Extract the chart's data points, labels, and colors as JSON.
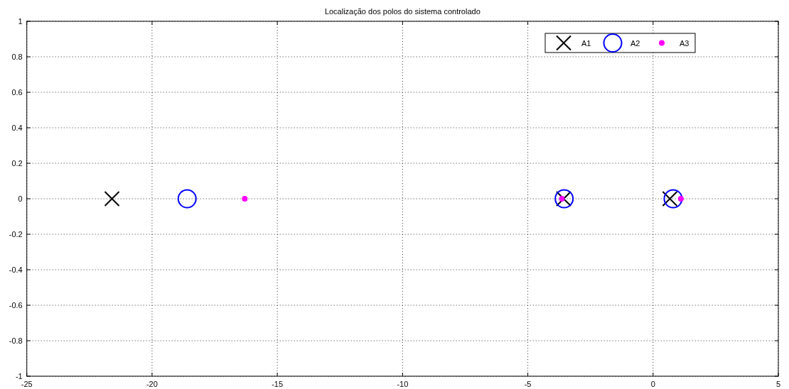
{
  "chart_data": {
    "type": "scatter",
    "title": "Localização dos polos do sistema controlado",
    "xlim": [
      -25,
      5
    ],
    "xticks": [
      -25,
      -20,
      -15,
      -10,
      -5,
      0,
      5
    ],
    "ylim": [
      -1,
      1
    ],
    "yticks": [
      -1,
      -0.8,
      -0.6,
      -0.4,
      -0.2,
      0,
      0.2,
      0.4,
      0.6,
      0.8,
      1
    ],
    "grid": true,
    "legend": "top right",
    "series": [
      {
        "name": "A1",
        "color": "#000000",
        "marker": "cross",
        "x": [
          -21.6,
          -3.57,
          0.67
        ],
        "values": [
          0,
          0,
          0
        ]
      },
      {
        "name": "A2",
        "color": "#0000ff",
        "marker": "circle",
        "x": [
          -18.6,
          -3.55,
          0.8
        ],
        "values": [
          0,
          0,
          0
        ]
      },
      {
        "name": "A3",
        "color": "#ff00ff",
        "marker": "circle",
        "x": [
          -16.3,
          -3.64,
          1.11
        ],
        "values": [
          0,
          0,
          0
        ]
      }
    ]
  }
}
